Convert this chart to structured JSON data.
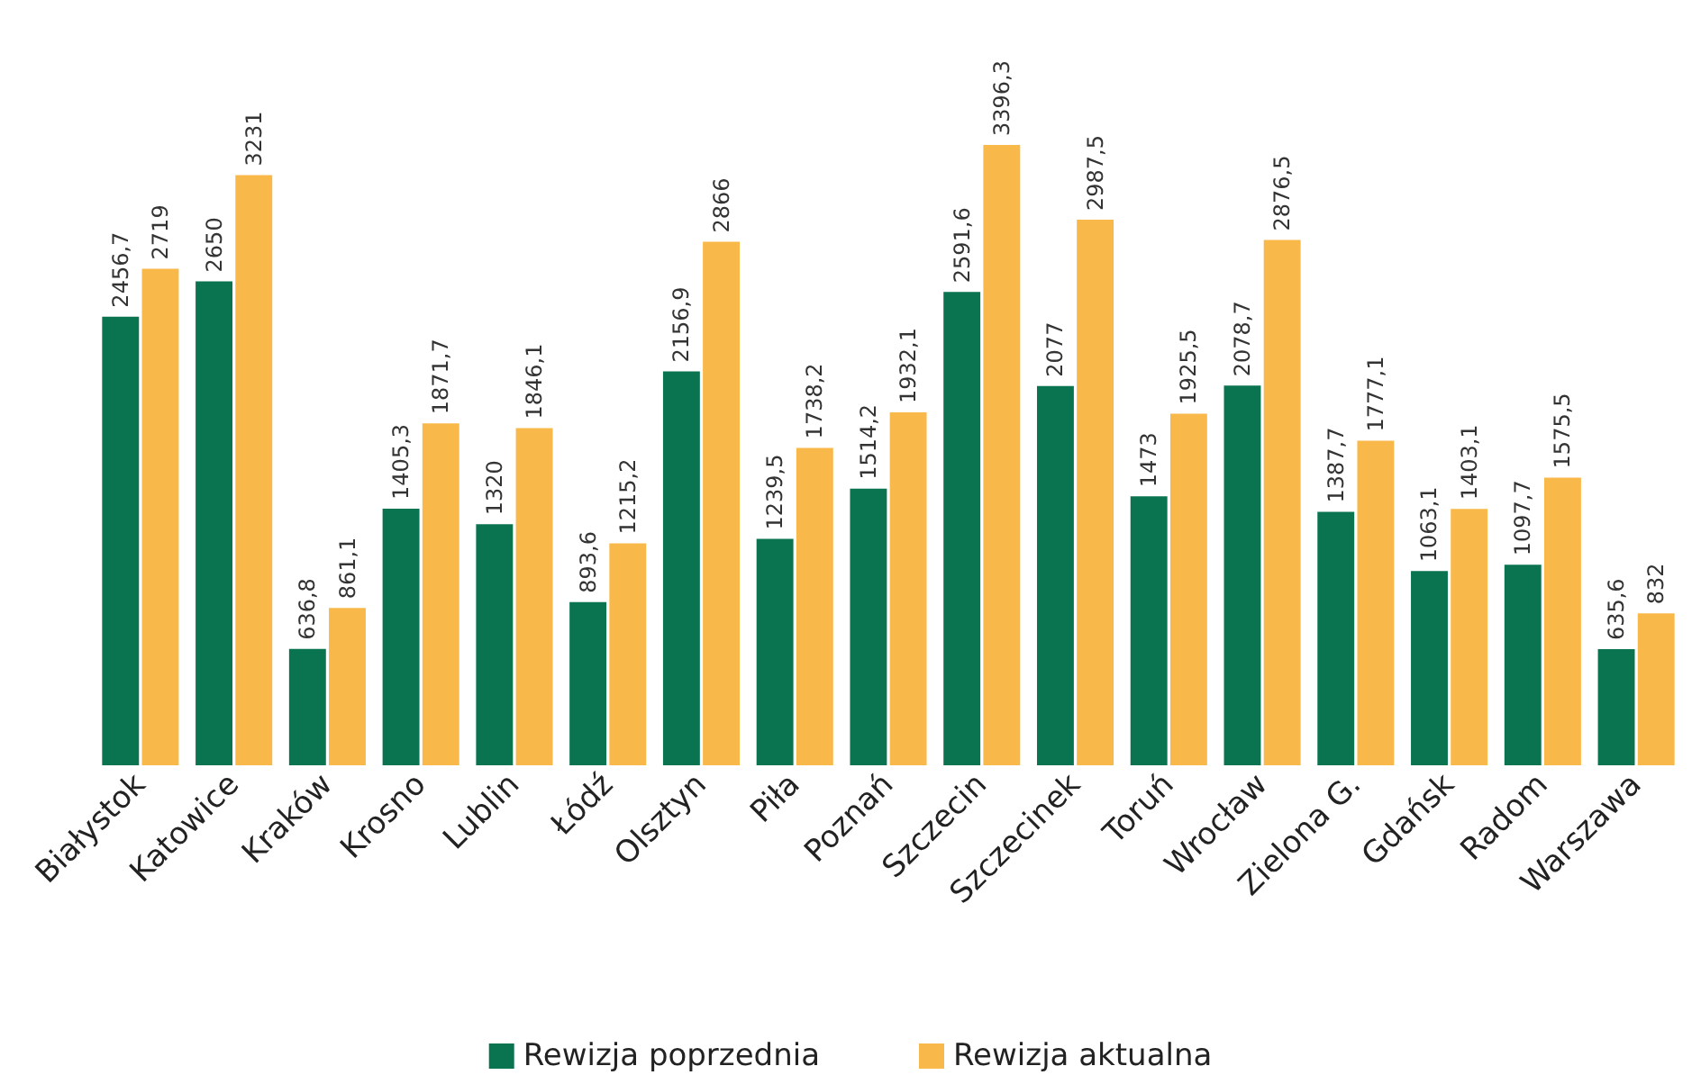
{
  "chart_data": {
    "type": "bar",
    "categories": [
      "Białystok",
      "Katowice",
      "Kraków",
      "Krosno",
      "Lublin",
      "Łódź",
      "Olsztyn",
      "Piła",
      "Poznań",
      "Szczecin",
      "Szczecinek",
      "Toruń",
      "Wrocław",
      "Zielona G.",
      "Gdańsk",
      "Radom",
      "Warszawa"
    ],
    "series": [
      {
        "name": "Rewizja poprzednia",
        "color": "#0a7350",
        "values": [
          2456.7,
          2650,
          636.8,
          1405.3,
          1320,
          893.6,
          2156.9,
          1239.5,
          1514.2,
          2591.6,
          2077,
          1473,
          2078.7,
          1387.7,
          1063.1,
          1097.7,
          635.6
        ],
        "value_labels": [
          "2456,7",
          "2650",
          "636,8",
          "1405,3",
          "1320",
          "893,6",
          "2156,9",
          "1239,5",
          "1514,2",
          "2591,6",
          "2077",
          "1473",
          "2078,7",
          "1387,7",
          "1063,1",
          "1097,7",
          "635,6"
        ]
      },
      {
        "name": "Rewizja aktualna",
        "color": "#f9b94a",
        "values": [
          2719,
          3231,
          861.1,
          1871.7,
          1846.1,
          1215.2,
          2866,
          1738.2,
          1932.1,
          3396.3,
          2987.5,
          1925.5,
          2876.5,
          1777.1,
          1403.1,
          1575.5,
          832
        ],
        "value_labels": [
          "2719",
          "3231",
          "861,1",
          "1871,7",
          "1846,1",
          "1215,2",
          "2866",
          "1738,2",
          "1932,1",
          "3396,3",
          "2987,5",
          "1925,5",
          "2876,5",
          "1777,1",
          "1403,1",
          "1575,5",
          "832"
        ]
      }
    ],
    "legend": "bottom"
  }
}
